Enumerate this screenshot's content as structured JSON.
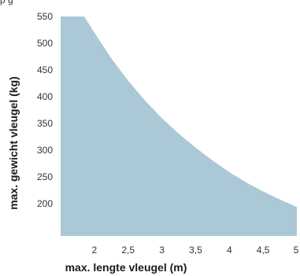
{
  "header": {
    "partial_text": "p  g"
  },
  "colors": {
    "area_fill": "#abc8d6",
    "text": "#333333",
    "title_text": "#1a1a1a"
  },
  "chart_data": {
    "type": "area",
    "xlabel": "max. lengte vleugel (m)",
    "ylabel": "max. gewicht vleugel (kg)",
    "x_ticks": [
      2,
      2.5,
      3,
      3.5,
      4,
      4.5,
      5
    ],
    "x_tick_labels": [
      "2",
      "2,5",
      "3",
      "3,5",
      "4",
      "4,5",
      "5"
    ],
    "y_ticks": [
      200,
      250,
      300,
      350,
      400,
      450,
      500,
      550
    ],
    "xlim": [
      1.5,
      5
    ],
    "ylim": [
      140,
      550
    ],
    "grid": false,
    "legend": "none",
    "series": [
      {
        "x": [
          1.5,
          1.85,
          2.0,
          2.25,
          2.5,
          2.75,
          3.0,
          3.25,
          3.5,
          3.75,
          4.0,
          4.25,
          4.5,
          4.75,
          5.0
        ],
        "values": [
          550,
          550,
          520,
          472,
          430,
          393,
          360,
          331,
          305,
          281,
          259,
          240,
          223,
          208,
          194
        ]
      }
    ]
  }
}
